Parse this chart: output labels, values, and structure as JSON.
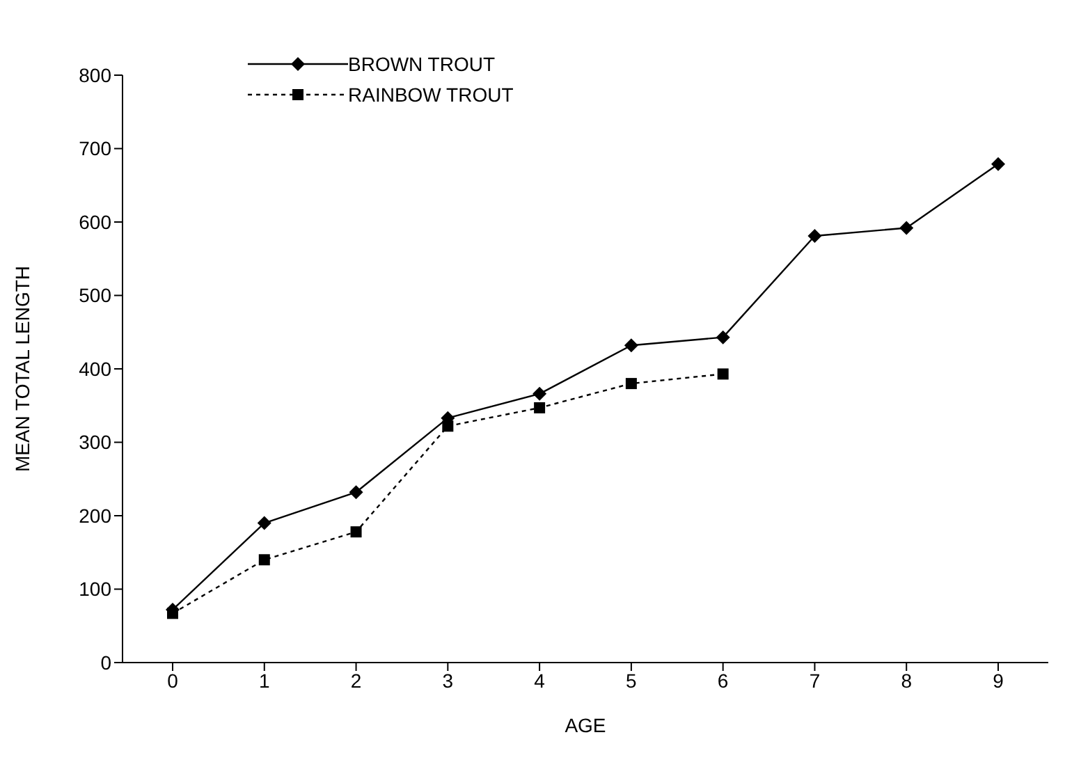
{
  "chart_data": {
    "type": "line",
    "xlabel": "AGE",
    "ylabel": "MEAN TOTAL LENGTH",
    "categories": [
      "0",
      "1",
      "2",
      "3",
      "4",
      "5",
      "6",
      "7",
      "8",
      "9"
    ],
    "series": [
      {
        "name": "BROWN TROUT",
        "color": "#000000",
        "marker": "diamond",
        "line_style": "solid",
        "values": [
          72,
          190,
          232,
          333,
          366,
          432,
          443,
          581,
          592,
          679
        ]
      },
      {
        "name": "RAINBOW TROUT",
        "color": "#000000",
        "marker": "square",
        "line_style": "dotted",
        "values": [
          67,
          140,
          178,
          322,
          347,
          380,
          393,
          null,
          null,
          null
        ]
      }
    ],
    "ylim": [
      0,
      800
    ],
    "yticks": [
      0,
      100,
      200,
      300,
      400,
      500,
      600,
      700,
      800
    ],
    "grid": false,
    "legend": "top left"
  }
}
